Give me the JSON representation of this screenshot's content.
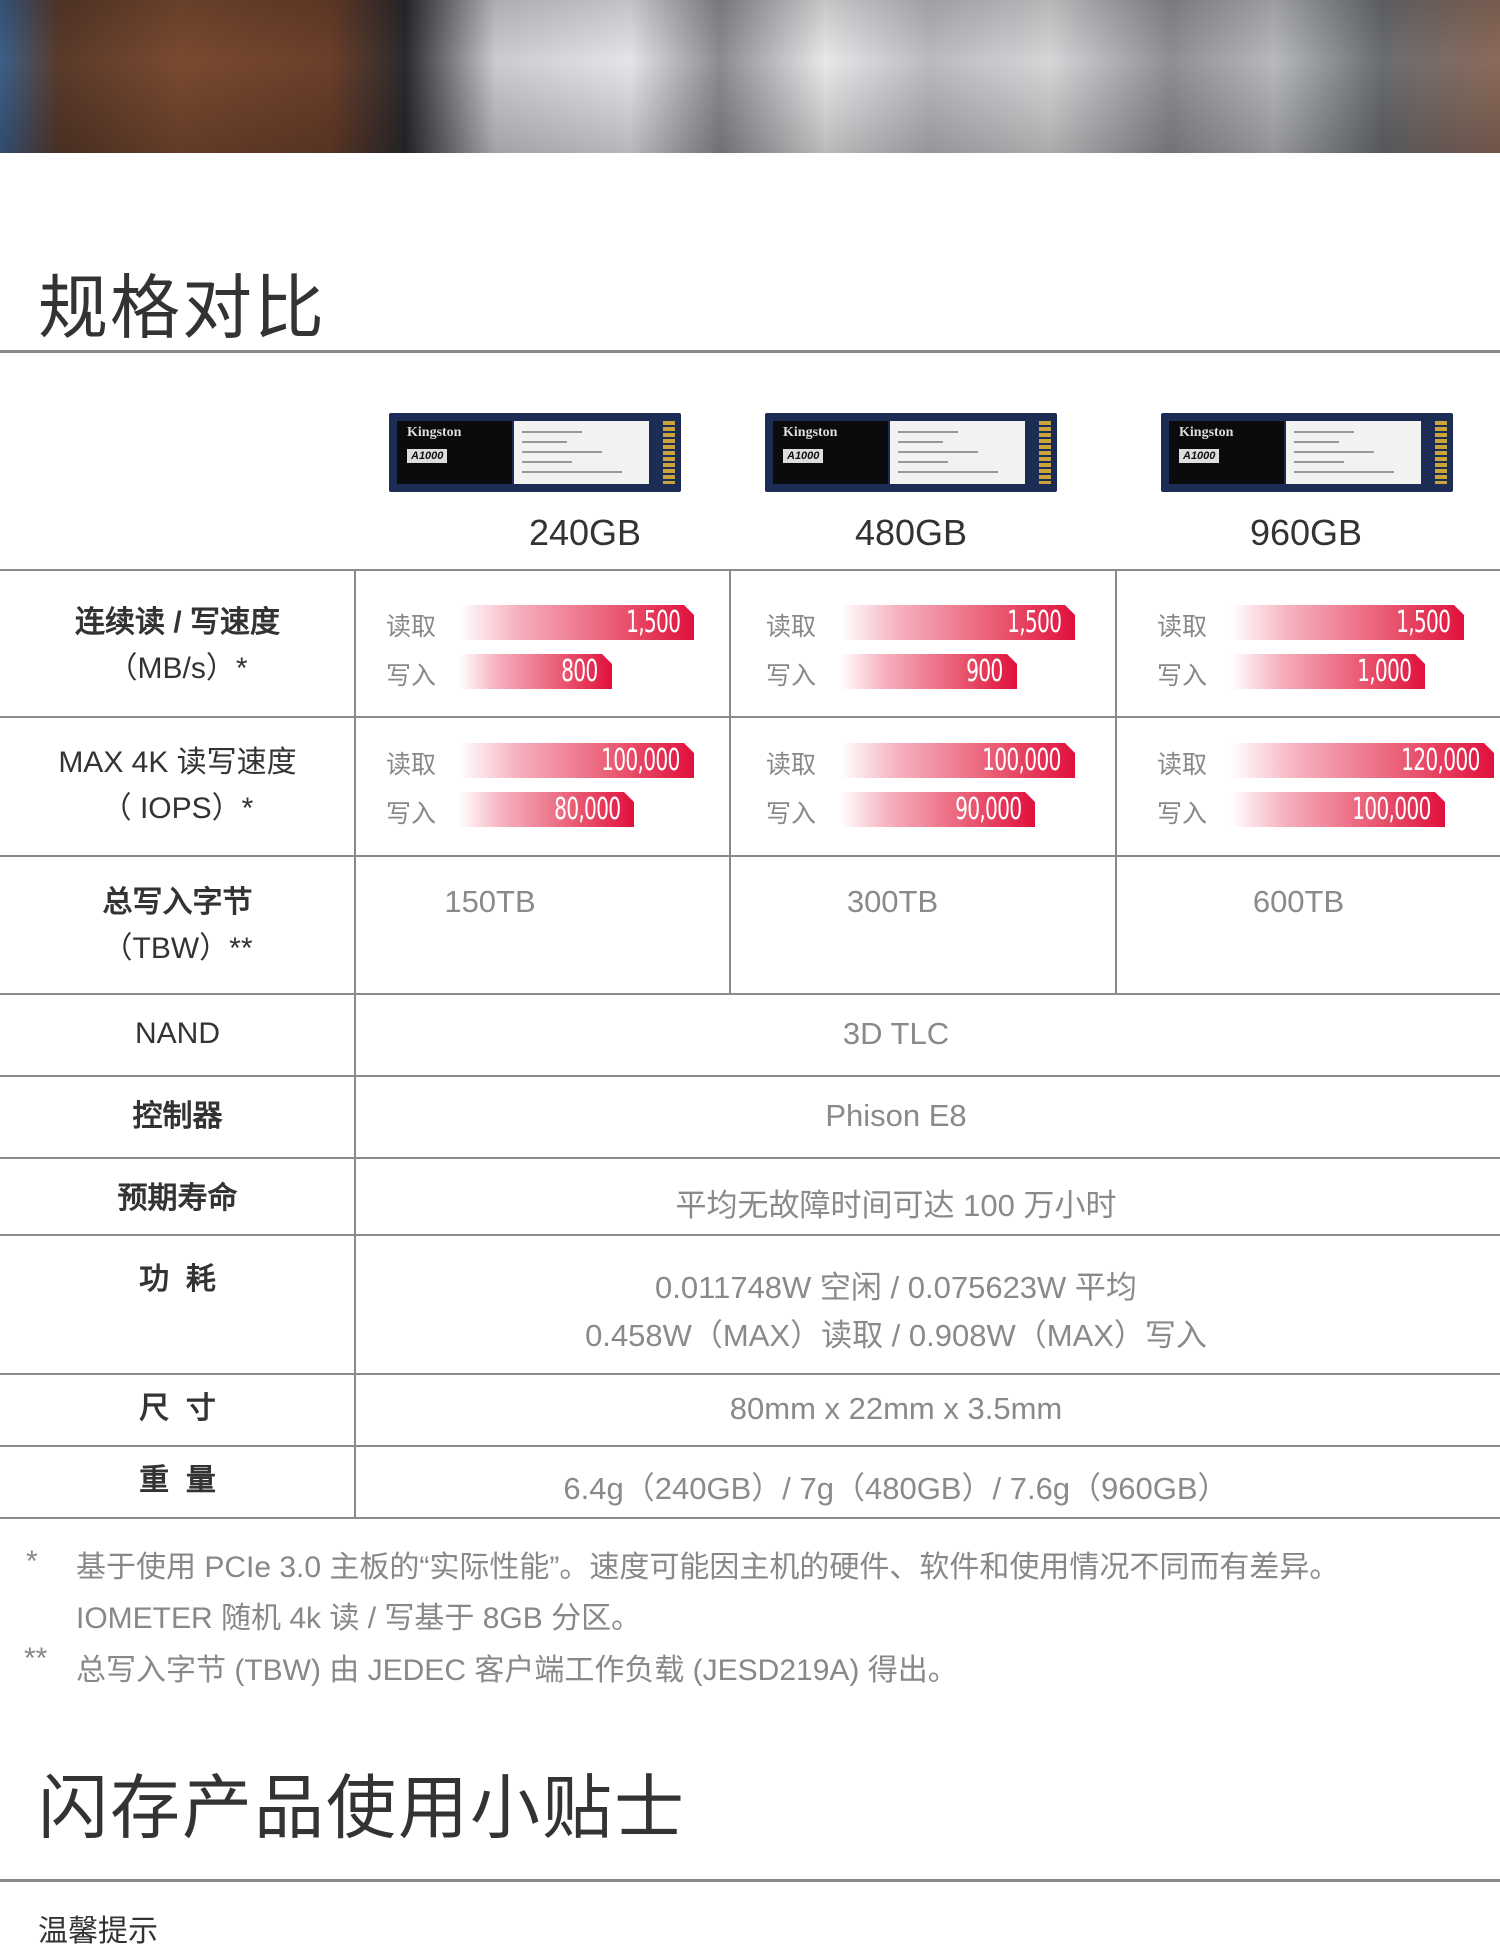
{
  "section_title": "规格对比",
  "products": [
    {
      "capacity": "240GB",
      "brand": "Kingston",
      "model": "A1000"
    },
    {
      "capacity": "480GB",
      "brand": "Kingston",
      "model": "A1000"
    },
    {
      "capacity": "960GB",
      "brand": "Kingston",
      "model": "A1000"
    }
  ],
  "rows": {
    "seq": {
      "label1": "连续读 / 写速度",
      "label2": "（MB/s）*"
    },
    "iops": {
      "label1": "MAX 4K 读写速度",
      "label2": "（ IOPS）*"
    },
    "tbw": {
      "label1": "总写入字节",
      "label2": "（TBW）**",
      "values": [
        "150TB",
        "300TB",
        "600TB"
      ]
    },
    "nand": {
      "label": "NAND",
      "value": "3D TLC"
    },
    "controller": {
      "label": "控制器",
      "value": "Phison E8"
    },
    "life": {
      "label": "预期寿命",
      "value": "平均无故障时间可达 100 万小时"
    },
    "power": {
      "label": "功  耗",
      "value1": "0.011748W 空闲 / 0.075623W 平均",
      "value2": "0.458W（MAX）读取 / 0.908W（MAX）写入"
    },
    "size": {
      "label": "尺  寸",
      "value": "80mm x 22mm x 3.5mm"
    },
    "weight": {
      "label": "重  量",
      "value": "6.4g（240GB）/ 7g（480GB）/ 7.6g（960GB）"
    }
  },
  "read_label": "读取",
  "write_label": "写入",
  "speeds": {
    "seq": [
      {
        "read": "1,500",
        "write": "800"
      },
      {
        "read": "1,500",
        "write": "900"
      },
      {
        "read": "1,500",
        "write": "1,000"
      }
    ],
    "iops": [
      {
        "read": "100,000",
        "write": "80,000"
      },
      {
        "read": "100,000",
        "write": "90,000"
      },
      {
        "read": "120,000",
        "write": "100,000"
      }
    ]
  },
  "bar_color": "#e0103c",
  "footnotes": {
    "mark1": "*",
    "text1a": "基于使用 PCIe 3.0 主板的“实际性能”。速度可能因主机的硬件、软件和使用情况不同而有差异。",
    "text1b": "IOMETER 随机 4k 读 / 写基于 8GB 分区。",
    "mark2": "**",
    "text2": "总写入字节 (TBW) 由 JEDEC 客户端工作负载 (JESD219A) 得出。"
  },
  "section2_title": "闪存产品使用小贴士",
  "section2_sub": "温馨提示"
}
